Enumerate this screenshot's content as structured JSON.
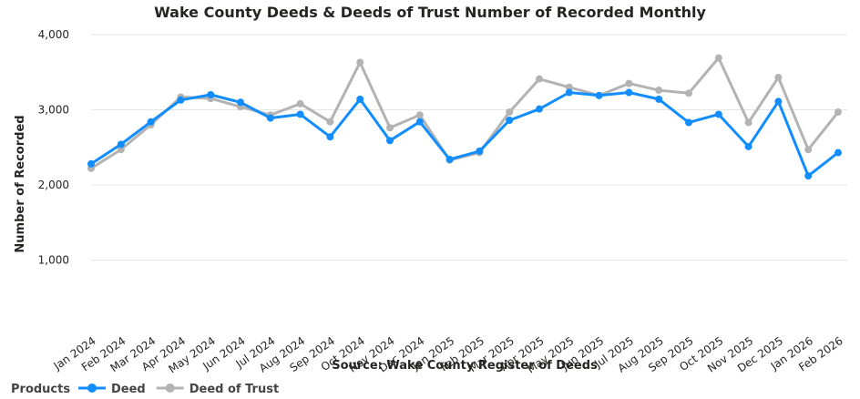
{
  "chart_data": {
    "type": "line",
    "title": "Wake County Deeds & Deeds of Trust Number of Recorded Monthly",
    "xlabel": "Source: Wake County Register of Deeds",
    "ylabel": "Number of Recorded",
    "ylim": [
      0,
      4000
    ],
    "y_ticks": [
      1000,
      2000,
      3000,
      4000
    ],
    "y_tick_labels": [
      "1,000",
      "2,000",
      "3,000",
      "4,000"
    ],
    "grid": true,
    "categories": [
      "Jan 2024",
      "Feb 2024",
      "Mar 2024",
      "Apr 2024",
      "May 2024",
      "Jun 2024",
      "Jul 2024",
      "Aug 2024",
      "Sep 2024",
      "Oct 2024",
      "Nov 2024",
      "Dec 2024",
      "Jan 2025",
      "Feb 2025",
      "Mar 2025",
      "Apr 2025",
      "May 2025",
      "Jun 2025",
      "Jul 2025",
      "Aug 2025",
      "Sep 2025",
      "Oct 2025",
      "Nov 2025",
      "Dec 2025",
      "Jan 2026",
      "Feb 2026"
    ],
    "legend_title": "Products",
    "legend_position": "bottom-left",
    "series": [
      {
        "name": "Deed",
        "color": "#118DFF",
        "values": [
          2280,
          2540,
          2840,
          3130,
          3200,
          3100,
          2890,
          2940,
          2640,
          3140,
          2590,
          2840,
          2340,
          2450,
          2860,
          3010,
          3230,
          3190,
          3230,
          3140,
          2830,
          2940,
          2510,
          3110,
          2120,
          2430
        ]
      },
      {
        "name": "Deed of Trust",
        "color": "#B3B3B3",
        "values": [
          2220,
          2470,
          2800,
          3170,
          3150,
          3040,
          2930,
          3080,
          2840,
          3630,
          2760,
          2930,
          2330,
          2430,
          2970,
          3410,
          3300,
          3190,
          3350,
          3260,
          3220,
          3690,
          2830,
          3430,
          2470,
          2970
        ]
      }
    ]
  }
}
